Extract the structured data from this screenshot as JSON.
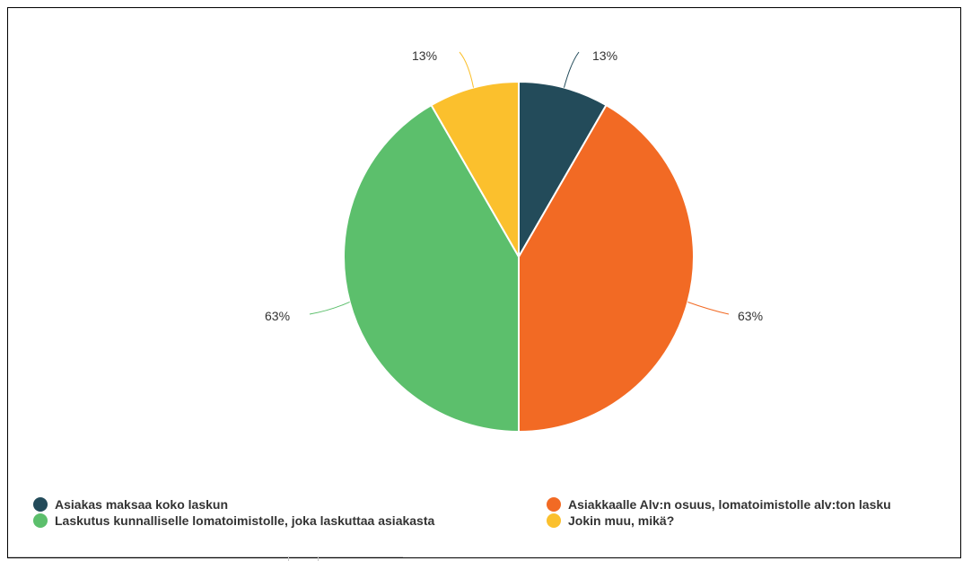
{
  "chart_data": {
    "type": "pie",
    "title": "",
    "slices": [
      {
        "label": "Asiakas maksaa koko laskun",
        "value": 12.5,
        "display": "13%",
        "color": "#234b5a"
      },
      {
        "label": "Asiakkaalle Alv:n osuus, lomatoimistolle alv:ton lasku",
        "value": 62.5,
        "display": "63%",
        "color": "#f26a24"
      },
      {
        "label": "Laskutus kunnalliselle lomatoimistolle, joka laskuttaa asiakasta",
        "value": 62.5,
        "display": "63%",
        "color": "#5cbf6c"
      },
      {
        "label": "Jokin muu, mikä?",
        "value": 12.5,
        "display": "13%",
        "color": "#fbc02d"
      }
    ],
    "legend": {
      "placement": "bottom",
      "entries": [
        {
          "label": "Asiakas maksaa koko laskun",
          "color": "#234b5a"
        },
        {
          "label": "Asiakkaalle Alv:n osuus, lomatoimistolle alv:ton lasku",
          "color": "#f26a24"
        },
        {
          "label": "Laskutus kunnalliselle lomatoimistolle, joka laskuttaa asiakasta",
          "color": "#5cbf6c"
        },
        {
          "label": "Jokin muu, mikä?",
          "color": "#fbc02d"
        }
      ]
    }
  }
}
